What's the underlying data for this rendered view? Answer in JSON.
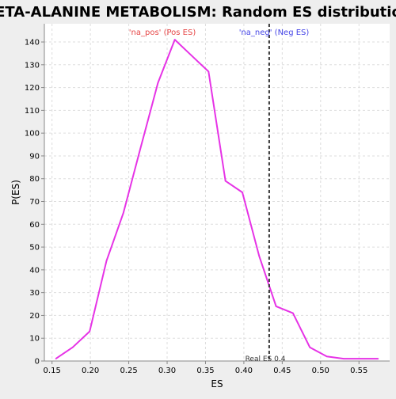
{
  "chart_data": {
    "type": "line",
    "title": "BETA-ALANINE METABOLISM: Random ES distribution",
    "xlabel": "ES",
    "ylabel": "P(ES)",
    "xlim": [
      0.14,
      0.59
    ],
    "ylim": [
      0,
      148
    ],
    "x_ticks": [
      0.15,
      0.2,
      0.25,
      0.3,
      0.35,
      0.4,
      0.45,
      0.5,
      0.55
    ],
    "x_tick_labels": [
      "0.15",
      "0.20",
      "0.25",
      "0.30",
      "0.35",
      "0.40",
      "0.45",
      "0.50",
      "0.55"
    ],
    "y_ticks": [
      0,
      10,
      20,
      30,
      40,
      50,
      60,
      70,
      80,
      90,
      100,
      110,
      120,
      130,
      140
    ],
    "y_tick_labels": [
      "0",
      "10",
      "20",
      "30",
      "40",
      "50",
      "60",
      "70",
      "80",
      "90",
      "100",
      "110",
      "120",
      "130",
      "140"
    ],
    "grid": true,
    "series": [
      {
        "color": "#e633e6",
        "x": [
          0.155,
          0.177,
          0.199,
          0.221,
          0.243,
          0.265,
          0.288,
          0.31,
          0.332,
          0.354,
          0.376,
          0.398,
          0.42,
          0.442,
          0.464,
          0.486,
          0.508,
          0.53,
          0.552,
          0.575
        ],
        "y": [
          1,
          6,
          13,
          44,
          65,
          93,
          122,
          141,
          134,
          127,
          79,
          74,
          46,
          24,
          21,
          6,
          2,
          1,
          1,
          1
        ]
      }
    ],
    "legend": {
      "placement": "top",
      "items": [
        {
          "label": "'na_pos' (Pos ES)",
          "color": "#e64545"
        },
        {
          "label": "'na_neg' (Neg ES)",
          "color": "#4545e6"
        }
      ]
    },
    "reference_line": {
      "x": 0.433,
      "label": "Real ES 0.4",
      "color": "#333333"
    },
    "colors": {
      "background": "#eeeeee",
      "plot_background": "#ffffff",
      "grid": "#dddddd"
    }
  }
}
